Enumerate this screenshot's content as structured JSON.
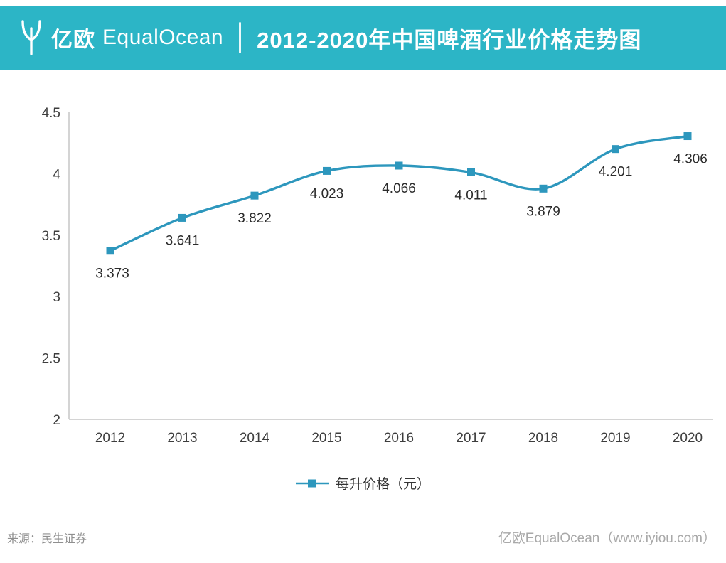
{
  "header": {
    "logo_cn": "亿欧",
    "logo_en": "EqualOcean",
    "title": "2012-2020年中国啤酒行业价格走势图"
  },
  "colors": {
    "header_band": "#2cb5c6",
    "line": "#2d97bd",
    "axis": "#c6c6c6"
  },
  "chart_data": {
    "type": "line",
    "title": "2012-2020年中国啤酒行业价格走势图",
    "categories": [
      "2012",
      "2013",
      "2014",
      "2015",
      "2016",
      "2017",
      "2018",
      "2019",
      "2020"
    ],
    "series": [
      {
        "name": "每升价格（元）",
        "values": [
          3.373,
          3.641,
          3.822,
          4.023,
          4.066,
          4.011,
          3.879,
          4.201,
          4.306
        ]
      }
    ],
    "xlabel": "",
    "ylabel": "",
    "ylim": [
      2,
      4.5
    ],
    "yticks": [
      2,
      2.5,
      3,
      3.5,
      4,
      4.5
    ],
    "grid": false,
    "legend_position": "bottom",
    "marker": "square",
    "line_smooth": true
  },
  "footer": {
    "source": "来源：民生证券",
    "credit": "亿欧EqualOcean（www.iyiou.com）"
  }
}
